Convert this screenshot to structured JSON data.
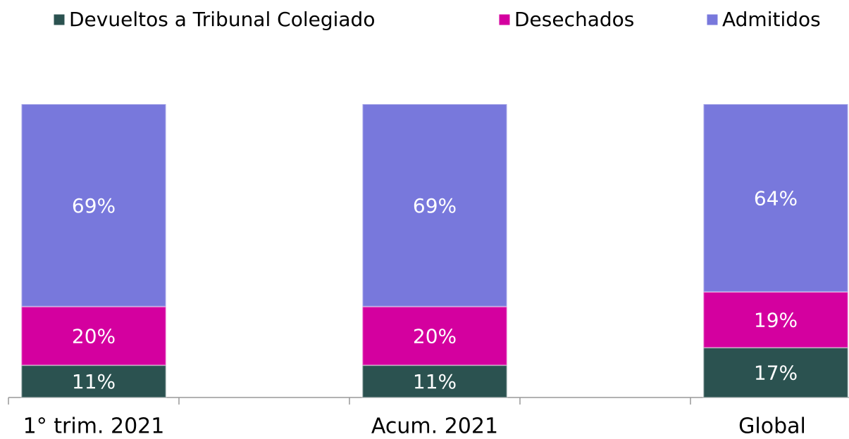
{
  "chart_data": {
    "type": "stacked_bar",
    "categories": [
      "1° trim. 2021",
      null,
      "Acum. 2021",
      null,
      "Global"
    ],
    "series": [
      {
        "name": "Devueltos a Tribunal Colegiado",
        "color": "#2b5250",
        "values": [
          11,
          null,
          11,
          null,
          17
        ],
        "value_labels": [
          "11%",
          null,
          "11%",
          null,
          "17%"
        ]
      },
      {
        "name": "Desechados",
        "color": "#d4009f",
        "values": [
          20,
          null,
          20,
          null,
          19
        ],
        "value_labels": [
          "20%",
          null,
          "20%",
          null,
          "19%"
        ]
      },
      {
        "name": "Admitidos",
        "color": "#7878dc",
        "values": [
          69,
          null,
          69,
          null,
          64
        ],
        "value_labels": [
          "69%",
          null,
          "69%",
          null,
          "64%"
        ]
      }
    ],
    "ylim": [
      0,
      100
    ],
    "legend": "top"
  }
}
